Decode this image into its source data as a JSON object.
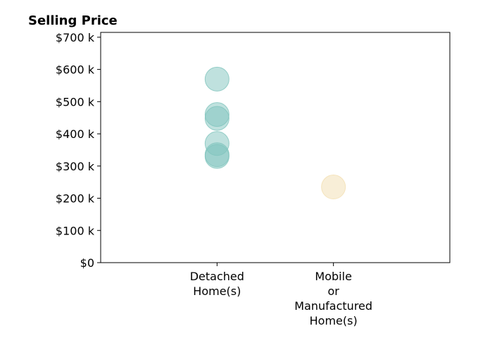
{
  "chart_data": {
    "type": "scatter",
    "title": "Selling Price",
    "xlabel": "",
    "ylabel": "",
    "categories": [
      [
        "Detached",
        "Home(s)"
      ],
      [
        "Mobile",
        "or",
        "Manufactured",
        "Home(s)"
      ]
    ],
    "xlim": [
      0,
      3
    ],
    "ylim": [
      0,
      715000
    ],
    "yticks": [
      0,
      100000,
      200000,
      300000,
      400000,
      500000,
      600000,
      700000
    ],
    "ytick_labels": [
      "$0",
      "$100 k",
      "$200 k",
      "$300 k",
      "$400 k",
      "$500 k",
      "$600 k",
      "$700 k"
    ],
    "grid": false,
    "legend": "none",
    "series": [
      {
        "category_index": 0,
        "color": "#7fc4bd",
        "points": [
          570000,
          460000,
          448000,
          370000,
          335000,
          330000
        ]
      },
      {
        "category_index": 1,
        "color": "#f2deb0",
        "points": [
          235000
        ]
      }
    ]
  }
}
